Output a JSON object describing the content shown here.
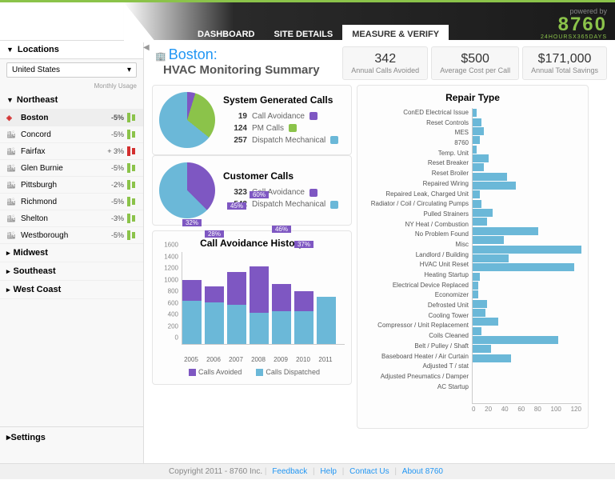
{
  "brand": {
    "powered_by": "powered by",
    "logo": "8760",
    "tagline": "24HOURSX365DAYS"
  },
  "nav": {
    "items": [
      "DASHBOARD",
      "SITE DETAILS",
      "MEASURE & VERIFY"
    ],
    "active": 2
  },
  "sidebar": {
    "locations_label": "Locations",
    "country": "United States",
    "usage_header": "Monthly Usage",
    "regions": [
      {
        "name": "Northeast",
        "expanded": true,
        "items": [
          {
            "name": "Boston",
            "pct": "-5%",
            "icon": "alert",
            "selected": true,
            "spark_color": "#8bc34a"
          },
          {
            "name": "Concord",
            "pct": "-5%",
            "spark_color": "#8bc34a"
          },
          {
            "name": "Fairfax",
            "pct": "+ 3%",
            "spark_color": "#d32f2f"
          },
          {
            "name": "Glen Burnie",
            "pct": "-5%",
            "spark_color": "#8bc34a"
          },
          {
            "name": "Pittsburgh",
            "pct": "-2%",
            "spark_color": "#8bc34a"
          },
          {
            "name": "Richmond",
            "pct": "-5%",
            "spark_color": "#8bc34a"
          },
          {
            "name": "Shelton",
            "pct": "-3%",
            "spark_color": "#8bc34a"
          },
          {
            "name": "Westborough",
            "pct": "-5%",
            "spark_color": "#8bc34a"
          }
        ]
      },
      {
        "name": "Midwest",
        "expanded": false
      },
      {
        "name": "Southeast",
        "expanded": false
      },
      {
        "name": "West Coast",
        "expanded": false
      }
    ],
    "settings_label": "Settings"
  },
  "header": {
    "icon": "building",
    "city": "Boston:",
    "subtitle": "HVAC Monitoring Summary",
    "metrics": [
      {
        "value": "342",
        "label": "Annual Calls Avoided"
      },
      {
        "value": "$500",
        "label": "Average Cost per Call"
      },
      {
        "value": "$171,000",
        "label": "Annual Total Savings"
      }
    ]
  },
  "colors": {
    "purple": "#7e57c2",
    "green": "#8bc34a",
    "blue": "#6bb8d8",
    "lightblue": "#9ed5e8"
  },
  "pies": [
    {
      "title": "System Generated Calls",
      "slices": [
        {
          "value": 19,
          "label": "Call Avoidance",
          "color": "#7e57c2"
        },
        {
          "value": 124,
          "label": "PM Calls",
          "color": "#8bc34a"
        },
        {
          "value": 257,
          "label": "Dispatch Mechanical",
          "color": "#6bb8d8"
        }
      ]
    },
    {
      "title": "Customer Calls",
      "slices": [
        {
          "value": 323,
          "label": "Call Avoidance",
          "color": "#7e57c2"
        },
        {
          "value": 542,
          "label": "Dispatch Mechanical",
          "color": "#6bb8d8"
        }
      ]
    }
  ],
  "history": {
    "title": "Call Avoidance History",
    "ymax": 1600,
    "ystep": 200,
    "years": [
      "2005",
      "2006",
      "2007",
      "2008",
      "2009",
      "2010",
      "2011"
    ],
    "bars": [
      {
        "avoided": 350,
        "dispatched": 750,
        "pct": "32%"
      },
      {
        "avoided": 280,
        "dispatched": 720,
        "pct": "28%"
      },
      {
        "avoided": 560,
        "dispatched": 680,
        "pct": "45%"
      },
      {
        "avoided": 800,
        "dispatched": 540,
        "pct": "60%"
      },
      {
        "avoided": 480,
        "dispatched": 560,
        "pct": "46%"
      },
      {
        "avoided": 340,
        "dispatched": 570,
        "pct": "37%"
      },
      {
        "avoided": 0,
        "dispatched": 820,
        "pct": ""
      }
    ],
    "legend": [
      {
        "label": "Calls Avoided",
        "color": "#7e57c2"
      },
      {
        "label": "Calls Dispatched",
        "color": "#6bb8d8"
      }
    ]
  },
  "repair": {
    "title": "Repair Type",
    "xmax": 120,
    "xstep": 20,
    "items": [
      {
        "label": "ConED Electrical Issue",
        "value": 4
      },
      {
        "label": "Reset Controls",
        "value": 10
      },
      {
        "label": "MES",
        "value": 12
      },
      {
        "label": "8760",
        "value": 8
      },
      {
        "label": "Temp. Unit",
        "value": 4
      },
      {
        "label": "Reset Breaker",
        "value": 18
      },
      {
        "label": "Reset Broiler",
        "value": 12
      },
      {
        "label": "Repaired Wiring",
        "value": 38
      },
      {
        "label": "Repaired Leak, Charged Unit",
        "value": 48
      },
      {
        "label": "Radiator / Coil / Circulating Pumps",
        "value": 8
      },
      {
        "label": "Pulled Strainers",
        "value": 10
      },
      {
        "label": "NY Heat / Combustion",
        "value": 22
      },
      {
        "label": "No Problem Found",
        "value": 16
      },
      {
        "label": "Misc",
        "value": 72
      },
      {
        "label": "Landlord / Building",
        "value": 34
      },
      {
        "label": "HVAC Unit Reset",
        "value": 120
      },
      {
        "label": "Heating Startup",
        "value": 40
      },
      {
        "label": "Electrical Device Replaced",
        "value": 112
      },
      {
        "label": "Economizer",
        "value": 8
      },
      {
        "label": "Defrosted Unit",
        "value": 6
      },
      {
        "label": "Cooling Tower",
        "value": 6
      },
      {
        "label": "Compressor / Unit Replacement",
        "value": 16
      },
      {
        "label": "Coils Cleaned",
        "value": 14
      },
      {
        "label": "Belt / Pulley / Shaft",
        "value": 28
      },
      {
        "label": "Baseboard Heater / Air Curtain",
        "value": 10
      },
      {
        "label": "Adjusted T / stat",
        "value": 94
      },
      {
        "label": "Adjusted Pneumatics / Damper",
        "value": 20
      },
      {
        "label": "AC Startup",
        "value": 42
      }
    ]
  },
  "footer": {
    "copyright": "Copyright 2011 - 8760 Inc.",
    "links": [
      "Feedback",
      "Help",
      "Contact Us",
      "About 8760"
    ]
  }
}
